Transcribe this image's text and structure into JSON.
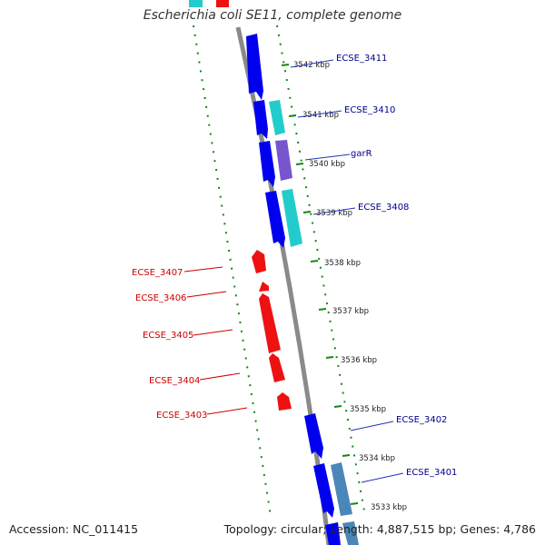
{
  "title": "Escherichia coli SE11, complete genome",
  "footer": {
    "accession": "Accession: NC_011415",
    "summary": "Topology: circular; Length: 4,887,515 bp; Genes: 4,786"
  },
  "colors": {
    "forward_strand": "#0000ee",
    "forward_strand_cyan": "#22cccc",
    "forward_strand_purple": "#7755cc",
    "forward_strand_steel": "#4b86b8",
    "reverse_strand": "#ee1111",
    "backbone": "#8a8a8a",
    "gc_ticks": "#118811",
    "forward_label": "#00008b",
    "reverse_label": "#cc0000"
  },
  "ticks": [
    {
      "label": "3542 kbp"
    },
    {
      "label": "3541 kbp"
    },
    {
      "label": "3540 kbp"
    },
    {
      "label": "3539 kbp"
    },
    {
      "label": "3538 kbp"
    },
    {
      "label": "3537 kbp"
    },
    {
      "label": "3536 kbp"
    },
    {
      "label": "3535 kbp"
    },
    {
      "label": "3534 kbp"
    },
    {
      "label": "3533 kbp"
    }
  ],
  "forward_genes": [
    {
      "label": "ECSE_3411",
      "color": "blue"
    },
    {
      "label": "ECSE_3410",
      "color": "blue+cyan"
    },
    {
      "label": "garR",
      "color": "blue+purple"
    },
    {
      "label": "ECSE_3408",
      "color": "blue+cyan"
    },
    {
      "label": "ECSE_3402",
      "color": "blue"
    },
    {
      "label": "ECSE_3401",
      "color": "blue+steel"
    }
  ],
  "reverse_genes": [
    {
      "label": "ECSE_3407"
    },
    {
      "label": "ECSE_3406"
    },
    {
      "label": "ECSE_3405"
    },
    {
      "label": "ECSE_3404"
    },
    {
      "label": "ECSE_3403"
    }
  ]
}
